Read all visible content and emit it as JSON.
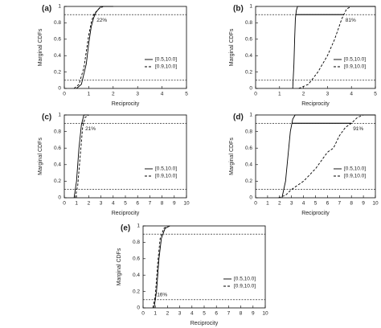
{
  "chart_data": [
    {
      "type": "line",
      "panel": "(a)",
      "x_label": "Reciprocity",
      "y_label": "Marginal CDFs",
      "xlim": [
        0,
        5
      ],
      "xticks": [
        0,
        1,
        2,
        3,
        4,
        5
      ],
      "ylim": [
        0,
        1
      ],
      "yticks": [
        0,
        0.2,
        0.4,
        0.6,
        0.8,
        1
      ],
      "hlines": [
        0.1,
        0.9
      ],
      "legend": "lower right",
      "annotation": {
        "text": "22%",
        "level": 0.9
      },
      "series": [
        {
          "name": "[0.5,10.0]",
          "color": "#000000",
          "style": "solid",
          "x": [
            0.5,
            0.7,
            0.9,
            1.0,
            1.1,
            1.2,
            1.3,
            1.5,
            2.0
          ],
          "values": [
            0,
            0.05,
            0.3,
            0.55,
            0.75,
            0.86,
            0.93,
            1,
            1
          ]
        },
        {
          "name": "[0.9,10.0]",
          "color": "#000000",
          "style": "dashed",
          "x": [
            0.4,
            0.6,
            0.8,
            0.9,
            1.0,
            1.1,
            1.2,
            1.4,
            1.6,
            2.0
          ],
          "values": [
            0,
            0.05,
            0.25,
            0.45,
            0.65,
            0.8,
            0.9,
            0.97,
            1,
            1
          ]
        }
      ]
    },
    {
      "type": "line",
      "panel": "(b)",
      "x_label": "Reciprocity",
      "y_label": "Marginal CDFs",
      "xlim": [
        0,
        5
      ],
      "xticks": [
        0,
        1,
        2,
        3,
        4,
        5
      ],
      "ylim": [
        0,
        1
      ],
      "yticks": [
        0,
        0.2,
        0.4,
        0.6,
        0.8,
        1
      ],
      "hlines": [
        0.1,
        0.9
      ],
      "legend": "lower right",
      "annotation": {
        "text": "81%",
        "level": 0.9
      },
      "series": [
        {
          "name": "[0.5,10.0]",
          "color": "#000000",
          "style": "solid",
          "x": [
            1.55,
            1.6,
            1.63,
            1.66,
            1.7,
            1.75,
            5
          ],
          "values": [
            0,
            0.3,
            0.6,
            0.85,
            0.95,
            1,
            1
          ]
        },
        {
          "name": "[0.9,10.0]",
          "color": "#000000",
          "style": "dashed",
          "x": [
            1.8,
            2.2,
            2.6,
            3.0,
            3.3,
            3.6,
            3.8,
            4.0
          ],
          "values": [
            0,
            0.05,
            0.2,
            0.4,
            0.6,
            0.85,
            0.97,
            1
          ]
        }
      ]
    },
    {
      "type": "line",
      "panel": "(c)",
      "x_label": "Reciprocity",
      "y_label": "Marginal CDFs",
      "xlim": [
        0,
        10
      ],
      "xticks": [
        0,
        1,
        2,
        3,
        4,
        5,
        6,
        7,
        8,
        9,
        10
      ],
      "ylim": [
        0,
        1
      ],
      "yticks": [
        0,
        0.2,
        0.4,
        0.6,
        0.8,
        1
      ],
      "hlines": [
        0.1,
        0.9
      ],
      "legend": "lower right",
      "annotation": {
        "text": "21%",
        "level": 0.9
      },
      "series": [
        {
          "name": "[0.5,10.0]",
          "color": "#000000",
          "style": "solid",
          "x": [
            0.8,
            1.0,
            1.2,
            1.4,
            1.6,
            2.0
          ],
          "values": [
            0,
            0.2,
            0.6,
            0.88,
            1,
            1
          ]
        },
        {
          "name": "[0.9,10.0]",
          "color": "#000000",
          "style": "dashed",
          "x": [
            0.9,
            1.1,
            1.3,
            1.5,
            1.7,
            2.0
          ],
          "values": [
            0,
            0.15,
            0.5,
            0.85,
            0.97,
            1
          ]
        }
      ]
    },
    {
      "type": "line",
      "panel": "(d)",
      "x_label": "Reciprocity",
      "y_label": "Marginal CDFs",
      "xlim": [
        0,
        10
      ],
      "xticks": [
        0,
        1,
        2,
        3,
        4,
        5,
        6,
        7,
        8,
        9,
        10
      ],
      "ylim": [
        0,
        1
      ],
      "yticks": [
        0,
        0.2,
        0.4,
        0.6,
        0.8,
        1
      ],
      "hlines": [
        0.1,
        0.9
      ],
      "legend": "lower right",
      "annotation": {
        "text": "91%",
        "level": 0.9
      },
      "series": [
        {
          "name": "[0.5,10.0]",
          "color": "#000000",
          "style": "solid",
          "x": [
            2.2,
            2.5,
            2.7,
            2.9,
            3.1,
            3.3,
            10
          ],
          "values": [
            0,
            0.2,
            0.5,
            0.8,
            0.95,
            1,
            1
          ]
        },
        {
          "name": "[0.9,10.0]",
          "color": "#000000",
          "style": "dashed",
          "x": [
            1.9,
            2.5,
            3,
            4,
            5,
            5.5,
            6,
            6.5,
            7,
            7.5,
            8,
            8.5,
            9
          ],
          "values": [
            0,
            0.03,
            0.1,
            0.2,
            0.35,
            0.45,
            0.55,
            0.6,
            0.75,
            0.85,
            0.9,
            0.97,
            1
          ]
        }
      ]
    },
    {
      "type": "line",
      "panel": "(e)",
      "x_label": "Reciprocity",
      "y_label": "Marginal CDFs",
      "xlim": [
        0,
        10
      ],
      "xticks": [
        0,
        1,
        2,
        3,
        4,
        5,
        6,
        7,
        8,
        9,
        10
      ],
      "ylim": [
        0,
        1
      ],
      "yticks": [
        0,
        0.2,
        0.4,
        0.6,
        0.8,
        1
      ],
      "hlines": [
        0.1,
        0.9
      ],
      "legend": "lower right",
      "annotation": {
        "text": "16%",
        "level": 0.1
      },
      "series": [
        {
          "name": "[0.5,10.0]",
          "color": "#000000",
          "style": "solid",
          "x": [
            0.9,
            1.1,
            1.3,
            1.5,
            1.8,
            2.2
          ],
          "values": [
            0,
            0.2,
            0.6,
            0.85,
            0.97,
            1
          ]
        },
        {
          "name": "[0.9,10.0]",
          "color": "#000000",
          "style": "dashed",
          "x": [
            0.8,
            1.0,
            1.2,
            1.4,
            1.7,
            2.0
          ],
          "values": [
            0,
            0.15,
            0.55,
            0.85,
            0.97,
            1
          ]
        }
      ]
    }
  ]
}
